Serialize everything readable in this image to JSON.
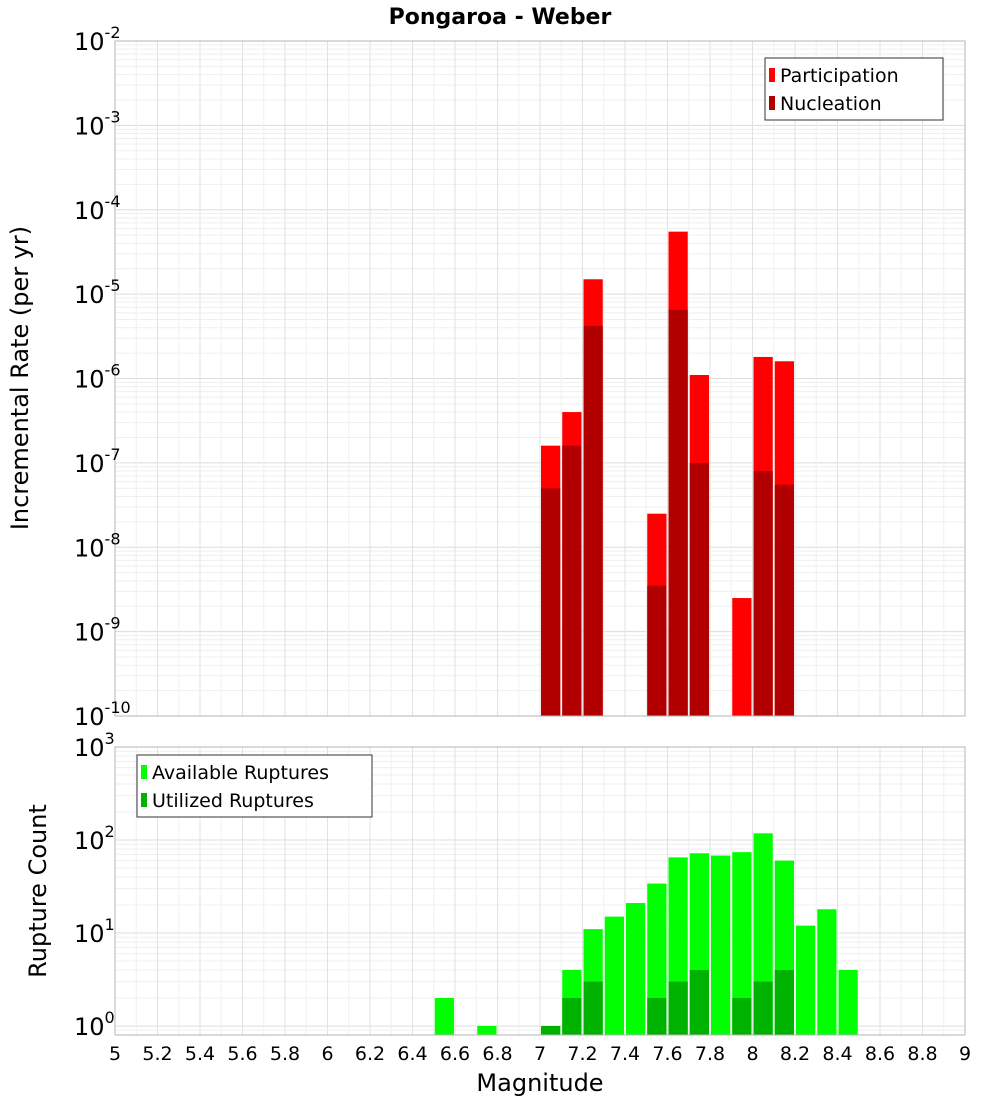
{
  "chart_data": [
    {
      "type": "bar",
      "title": "Pongaroa - Weber",
      "ylabel": "Incremental Rate (per yr)",
      "xlabel": "",
      "y_scale": "log",
      "ylim": [
        1e-10,
        0.01
      ],
      "xlim": [
        5,
        9
      ],
      "y_tick_labels": [
        {
          "base": "10",
          "exp": "-10"
        },
        {
          "base": "10",
          "exp": "-9"
        },
        {
          "base": "10",
          "exp": "-8"
        },
        {
          "base": "10",
          "exp": "-7"
        },
        {
          "base": "10",
          "exp": "-6"
        },
        {
          "base": "10",
          "exp": "-5"
        },
        {
          "base": "10",
          "exp": "-4"
        },
        {
          "base": "10",
          "exp": "-3"
        },
        {
          "base": "10",
          "exp": "-2"
        }
      ],
      "grid": true,
      "legend_position": "top-right",
      "bar_width": 0.1,
      "series": [
        {
          "name": "Participation",
          "color": "#ff0000",
          "x": [
            7.05,
            7.15,
            7.25,
            7.55,
            7.65,
            7.75,
            7.95,
            8.05,
            8.15
          ],
          "values": [
            1.6e-07,
            4e-07,
            1.5e-05,
            2.5e-08,
            5.5e-05,
            1.1e-06,
            2.5e-09,
            1.8e-06,
            1.6e-06
          ]
        },
        {
          "name": "Nucleation",
          "color": "#b20000",
          "x": [
            7.05,
            7.15,
            7.25,
            7.55,
            7.65,
            7.75,
            8.05,
            8.15
          ],
          "values": [
            5e-08,
            1.6e-07,
            4.2e-06,
            3.5e-09,
            6.5e-06,
            1e-07,
            8e-08,
            5.5e-08
          ]
        }
      ]
    },
    {
      "type": "bar",
      "title": "",
      "ylabel": "Rupture Count",
      "xlabel": "Magnitude",
      "y_scale": "log",
      "ylim": [
        0.8,
        1000
      ],
      "xlim": [
        5,
        9
      ],
      "y_tick_labels": [
        {
          "base": "10",
          "exp": "0"
        },
        {
          "base": "10",
          "exp": "1"
        },
        {
          "base": "10",
          "exp": "2"
        },
        {
          "base": "10",
          "exp": "3"
        }
      ],
      "x_tick_labels": [
        "5",
        "5.2",
        "5.4",
        "5.6",
        "5.8",
        "6",
        "6.2",
        "6.4",
        "6.6",
        "6.8",
        "7",
        "7.2",
        "7.4",
        "7.6",
        "7.8",
        "8",
        "8.2",
        "8.4",
        "8.6",
        "8.8",
        "9"
      ],
      "grid": true,
      "legend_position": "top-left",
      "bar_width": 0.1,
      "series": [
        {
          "name": "Available Ruptures",
          "color": "#00ff00",
          "x": [
            6.55,
            6.75,
            7.05,
            7.15,
            7.25,
            7.35,
            7.45,
            7.55,
            7.65,
            7.75,
            7.85,
            7.95,
            8.05,
            8.15,
            8.25,
            8.35,
            8.45
          ],
          "values": [
            2,
            1,
            1,
            4,
            11,
            15,
            21,
            34,
            65,
            72,
            68,
            74,
            118,
            60,
            12,
            18,
            4
          ]
        },
        {
          "name": "Utilized Ruptures",
          "color": "#00b200",
          "x": [
            7.05,
            7.15,
            7.25,
            7.55,
            7.65,
            7.75,
            7.95,
            8.05,
            8.15
          ],
          "values": [
            1,
            2,
            3,
            2,
            3,
            4,
            2,
            3,
            4
          ]
        }
      ]
    }
  ]
}
